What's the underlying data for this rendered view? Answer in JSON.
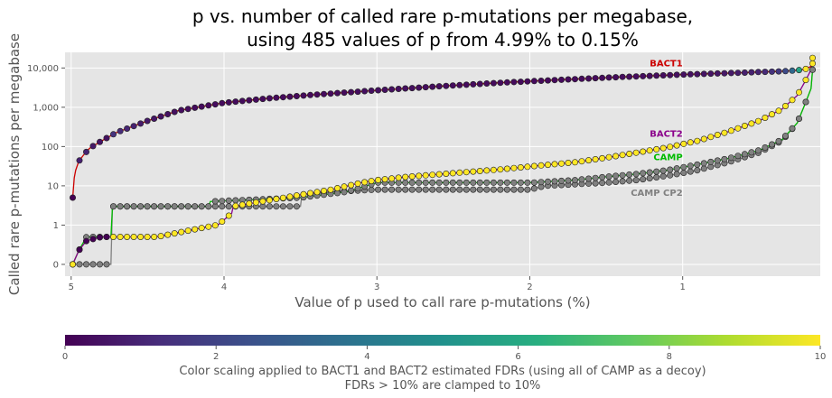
{
  "chart_data": {
    "type": "scatter",
    "title_line1": "p vs. number of called rare p-mutations per megabase,",
    "title_line2": "using 485 values of p from 4.99% to 0.15%",
    "xlabel": "Value of p used to call rare p-mutations (%)",
    "ylabel": "Called rare p-mutations per megabase",
    "x_reversed": true,
    "xlim": [
      5.04,
      0.1
    ],
    "x_ticks": [
      5,
      4,
      3,
      2,
      1
    ],
    "y_scale": "symlog",
    "ylim": [
      -0.3,
      25000
    ],
    "y_ticks": [
      0,
      1,
      10,
      100,
      1000,
      10000
    ],
    "y_tick_labels": [
      "0",
      "1",
      "10",
      "100",
      "1,000",
      "10,000"
    ],
    "grid": true,
    "series": [
      {
        "name": "BACT1",
        "color": "#cc0000",
        "colored_by_fdr": true,
        "x": [
          4.99,
          4.98,
          4.97,
          4.95,
          4.92,
          4.88,
          4.8,
          4.7,
          4.5,
          4.3,
          4.0,
          3.7,
          3.4,
          3.0,
          2.6,
          2.2,
          1.8,
          1.4,
          1.0,
          0.75,
          0.6,
          0.5,
          0.4,
          0.3,
          0.2,
          0.16,
          0.15
        ],
        "y": [
          5,
          16,
          25,
          42,
          60,
          90,
          140,
          230,
          450,
          820,
          1300,
          1700,
          2100,
          2700,
          3400,
          4200,
          5000,
          5900,
          6800,
          7300,
          7600,
          7900,
          8100,
          8400,
          9200,
          11000,
          13000
        ]
      },
      {
        "name": "BACT2",
        "color": "#8b008b",
        "colored_by_fdr": true,
        "x": [
          4.99,
          4.95,
          4.9,
          4.8,
          4.45,
          4.44,
          4.05,
          4.04,
          3.95,
          3.94,
          3.3,
          3.1,
          3.0,
          2.8,
          2.5,
          2.2,
          2.0,
          1.7,
          1.5,
          1.3,
          1.1,
          0.9,
          0.7,
          0.5,
          0.35,
          0.25,
          0.2,
          0.16,
          0.15
        ],
        "y": [
          0,
          0.35,
          0.6,
          0.7,
          0.7,
          0.7,
          1,
          1,
          2,
          3,
          8,
          12,
          14,
          17,
          21,
          26,
          31,
          40,
          52,
          70,
          95,
          140,
          240,
          450,
          900,
          2000,
          4500,
          9000,
          18000
        ]
      },
      {
        "name": "CAMP",
        "color": "#00bb00",
        "colored_by_fdr": false,
        "x": [
          4.99,
          4.95,
          4.9,
          4.74,
          4.73,
          4.1,
          4.09,
          3.5,
          3.2,
          3.0,
          2.5,
          2.0,
          1.7,
          1.5,
          1.3,
          1.1,
          0.9,
          0.7,
          0.5,
          0.35,
          0.25,
          0.2,
          0.16,
          0.15
        ],
        "y": [
          0,
          0.35,
          0.7,
          0.7,
          3,
          3,
          4,
          5,
          7,
          12,
          12,
          12,
          14,
          17,
          20,
          25,
          35,
          50,
          80,
          150,
          400,
          1200,
          3000,
          9000
        ]
      },
      {
        "name": "CAMP CP2",
        "color": "#808080",
        "colored_by_fdr": false,
        "x": [
          4.99,
          4.74,
          4.73,
          4.1,
          4.09,
          3.5,
          3.49,
          3.3,
          3.0,
          2.5,
          2.0,
          1.9,
          1.5,
          1.3,
          1.1,
          0.9,
          0.7,
          0.5,
          0.35,
          0.25,
          0.2,
          0.16,
          0.15
        ],
        "y": [
          0,
          0,
          3,
          3,
          3,
          3,
          6,
          7,
          8,
          8,
          8,
          10,
          12,
          14,
          18,
          25,
          40,
          70,
          140,
          400,
          1200,
          3000,
          9000
        ]
      }
    ],
    "colorbar": {
      "min": 0,
      "max": 10,
      "ticks": [
        0,
        2,
        4,
        6,
        8,
        10
      ],
      "colormap": "viridis",
      "label_line1": "Color scaling applied to BACT1 and BACT2 estimated FDRs (using all of CAMP as a decoy)",
      "label_line2": "FDRs > 10% are clamped to 10%"
    }
  }
}
